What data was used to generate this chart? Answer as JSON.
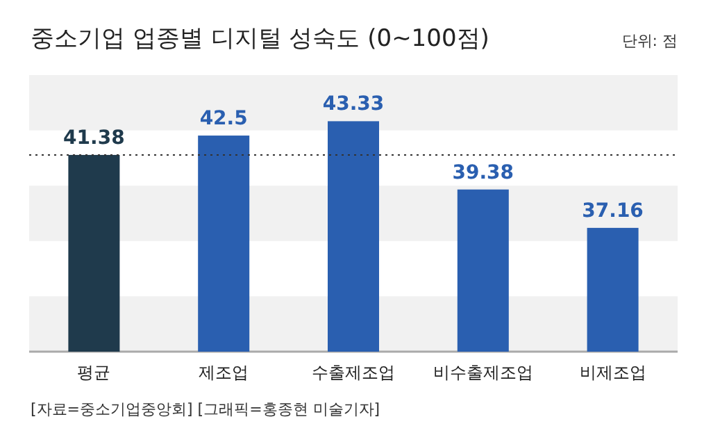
{
  "chart_data": {
    "type": "bar",
    "title": "중소기업 업종별 디지털 성숙도 (0~100점)",
    "subtitle": "단위: 점",
    "categories": [
      "평균",
      "제조업",
      "수출제조업",
      "비수출제조업",
      "비제조업"
    ],
    "values": [
      41.38,
      42.5,
      43.33,
      39.38,
      37.16
    ],
    "colors": [
      "#1f3a4c",
      "#2a5fb0",
      "#2a5fb0",
      "#2a5fb0",
      "#2a5fb0"
    ],
    "ylim": [
      30,
      46
    ],
    "data_labels": true,
    "bands": [
      {
        "axis": "y",
        "from": 42.8,
        "to": 46,
        "color": "#f1f1f1"
      },
      {
        "axis": "y",
        "from": 36.4,
        "to": 39.6,
        "color": "#f1f1f1"
      },
      {
        "axis": "y",
        "from": 30,
        "to": 33.2,
        "color": "#f1f1f1"
      }
    ],
    "ref_lines": [
      {
        "axis": "y",
        "value": 41.38,
        "line_style": "dotted",
        "color": "#333333"
      }
    ],
    "annotations": [
      "[자료=중소기업중앙회] [그래픽=홍종현 미술기자]"
    ]
  }
}
